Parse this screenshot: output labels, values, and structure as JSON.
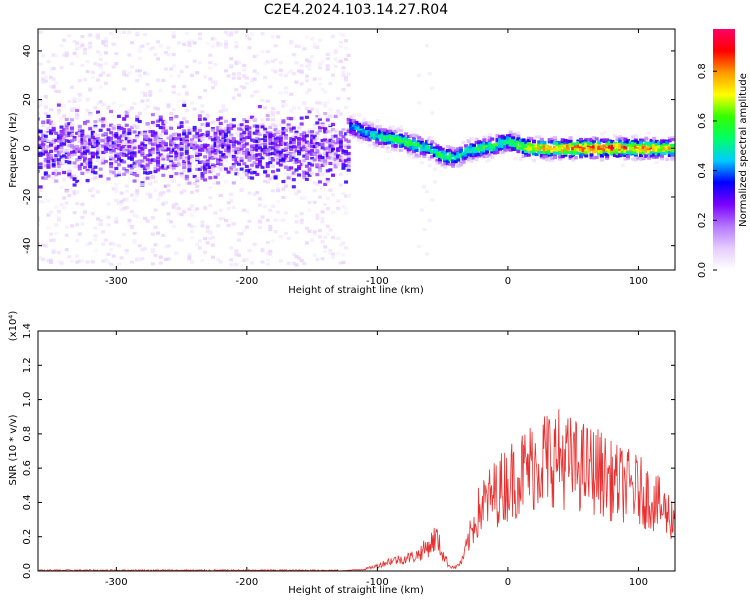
{
  "figure": {
    "title": "C2E4.2024.103.14.27.R04"
  },
  "chart_data": [
    {
      "type": "heatmap",
      "xlabel": "Height of straight line (km)",
      "ylabel": "Frequency (Hz)",
      "xlim": [
        -360,
        128
      ],
      "ylim": [
        -50,
        49
      ],
      "xticks": [
        -300,
        -200,
        -100,
        0,
        100
      ],
      "yticks": [
        -40,
        -20,
        0,
        20,
        40
      ],
      "colorbar": {
        "label": "Normalized spectral amplitude",
        "range": [
          0.0,
          0.97
        ],
        "ticks": [
          0.0,
          0.2,
          0.4,
          0.6,
          0.8
        ],
        "colormap": [
          "#ffffff",
          "#e6ccff",
          "#b477ff",
          "#7a00ff",
          "#0000ff",
          "#00ccff",
          "#00ff66",
          "#33ff00",
          "#ffff00",
          "#ff9900",
          "#ff0000",
          "#ff0066"
        ]
      },
      "ridge": {
        "x": [
          -120,
          -110,
          -100,
          -90,
          -80,
          -70,
          -60,
          -50,
          -40,
          -30,
          -20,
          -10,
          0,
          10,
          20,
          30,
          40,
          50,
          60,
          70,
          80,
          90,
          100,
          110,
          120,
          128
        ],
        "freq": [
          9,
          7,
          5,
          4,
          3,
          1,
          0,
          -3,
          -4,
          -1,
          0,
          1,
          3,
          1,
          0,
          0,
          0,
          0,
          0,
          0,
          0,
          0,
          0,
          0,
          0,
          0
        ],
        "amplitude": [
          0.45,
          0.5,
          0.55,
          0.6,
          0.62,
          0.6,
          0.55,
          0.6,
          0.55,
          0.55,
          0.6,
          0.62,
          0.6,
          0.7,
          0.78,
          0.82,
          0.85,
          0.88,
          0.9,
          0.92,
          0.9,
          0.88,
          0.87,
          0.85,
          0.8,
          0.75
        ]
      }
    },
    {
      "type": "line",
      "xlabel": "Height of straight line (km)",
      "ylabel": "SNR (10 * v/v)",
      "yscale_label": "(x10⁴)",
      "xlim": [
        -360,
        128
      ],
      "ylim": [
        0.0,
        1.4
      ],
      "xticks": [
        -300,
        -200,
        -100,
        0,
        100
      ],
      "yticks": [
        0.0,
        0.2,
        0.4,
        0.6,
        0.8,
        1.0,
        1.2,
        1.4
      ],
      "color": "#e83030",
      "series": [
        {
          "x": [
            -360,
            -300,
            -200,
            -130,
            -110,
            -100,
            -90,
            -80,
            -70,
            -60,
            -55,
            -50,
            -45,
            -40,
            -35,
            -30,
            -25,
            -20,
            -10,
            0,
            10,
            20,
            30,
            40,
            50,
            60,
            70,
            80,
            90,
            100,
            110,
            120,
            128
          ],
          "values": [
            0.0,
            0.0,
            0.0,
            0.0,
            0.01,
            0.03,
            0.06,
            0.07,
            0.09,
            0.15,
            0.2,
            0.1,
            0.03,
            0.02,
            0.06,
            0.18,
            0.3,
            0.38,
            0.45,
            0.52,
            0.57,
            0.62,
            0.68,
            0.66,
            0.62,
            0.6,
            0.58,
            0.52,
            0.5,
            0.47,
            0.42,
            0.35,
            0.3
          ]
        }
      ]
    }
  ]
}
